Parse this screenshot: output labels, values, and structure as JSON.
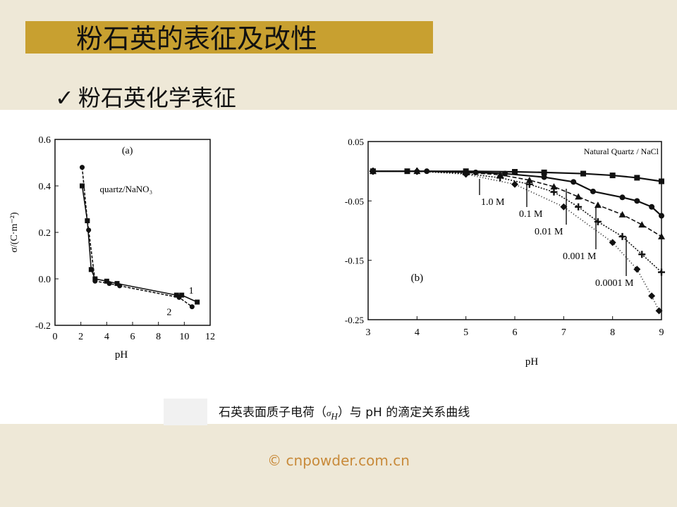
{
  "slide": {
    "title": "粉石英的表征及改性",
    "subtitle_check": "✓",
    "subtitle": "粉石英化学表征",
    "caption_prefix": "石英表面质子电荷（",
    "caption_sigma": "σ",
    "caption_sub": "H",
    "caption_suffix": "）与 pH 的滴定关系曲线",
    "footer": "© cnpowder.com.cn",
    "colors": {
      "background": "#eee8d7",
      "title_bar": "#c8a030",
      "footer": "#c88a3a"
    }
  },
  "chart_data": [
    {
      "type": "line",
      "panel_label": "(a)",
      "annotation": "quartz/NaNO₃",
      "xlabel": "pH",
      "ylabel": "σ/(C·m⁻²)",
      "xlim": [
        0,
        12
      ],
      "ylim": [
        -0.2,
        0.6
      ],
      "xticks": [
        "0",
        "2",
        "4",
        "6",
        "8",
        "10",
        "12"
      ],
      "yticks": [
        "-0.2",
        "0.0",
        "0.2",
        "0.4",
        "0.6"
      ],
      "grid": false,
      "series": [
        {
          "name": "1",
          "marker": "square",
          "x": [
            2.1,
            2.5,
            2.8,
            3.1,
            4.0,
            4.8,
            9.4,
            9.8,
            11.0
          ],
          "y": [
            0.4,
            0.25,
            0.04,
            0.0,
            -0.01,
            -0.02,
            -0.07,
            -0.07,
            -0.1
          ]
        },
        {
          "name": "2",
          "marker": "circle",
          "x": [
            2.1,
            2.5,
            2.6,
            3.1,
            4.2,
            5.0,
            9.6,
            10.6
          ],
          "y": [
            0.48,
            0.25,
            0.21,
            -0.01,
            -0.02,
            -0.03,
            -0.08,
            -0.12
          ]
        }
      ]
    },
    {
      "type": "line",
      "panel_label": "(b)",
      "legend_title": "Natural Quartz / NaCl",
      "xlabel": "pH",
      "xlim": [
        3,
        9
      ],
      "ylim": [
        -0.25,
        0.05
      ],
      "xticks": [
        "3",
        "4",
        "5",
        "6",
        "7",
        "8",
        "9"
      ],
      "yticks": [
        "0.05",
        "-0.05",
        "-0.15",
        "-0.25"
      ],
      "grid": false,
      "series": [
        {
          "name": "1.0 M",
          "marker": "square",
          "x": [
            3.1,
            3.8,
            5.0,
            6.0,
            6.6,
            7.4,
            8.0,
            8.5,
            9.0
          ],
          "y": [
            0.0,
            0.0,
            0.0,
            -0.001,
            -0.002,
            -0.004,
            -0.007,
            -0.011,
            -0.017
          ]
        },
        {
          "name": "0.1 M",
          "marker": "circle",
          "x": [
            3.1,
            4.2,
            5.2,
            5.8,
            6.6,
            7.2,
            7.6,
            8.2,
            8.5,
            8.8,
            9.0
          ],
          "y": [
            0.0,
            0.0,
            -0.002,
            -0.004,
            -0.01,
            -0.018,
            -0.034,
            -0.044,
            -0.05,
            -0.06,
            -0.075
          ]
        },
        {
          "name": "0.01 M",
          "marker": "triangle",
          "x": [
            3.1,
            4.0,
            5.0,
            5.7,
            6.3,
            6.8,
            7.3,
            7.7,
            8.2,
            8.6,
            9.0
          ],
          "y": [
            0.0,
            0.0,
            -0.002,
            -0.006,
            -0.015,
            -0.026,
            -0.043,
            -0.057,
            -0.073,
            -0.09,
            -0.11
          ]
        },
        {
          "name": "0.001 M",
          "marker": "cross",
          "x": [
            3.1,
            4.0,
            5.0,
            5.7,
            6.3,
            6.8,
            7.3,
            7.7,
            8.2,
            8.6,
            9.0
          ],
          "y": [
            0.0,
            0.0,
            -0.004,
            -0.011,
            -0.022,
            -0.035,
            -0.06,
            -0.085,
            -0.11,
            -0.14,
            -0.17
          ]
        },
        {
          "name": "0.0001 M",
          "marker": "diamond",
          "x": [
            3.1,
            4.0,
            5.0,
            6.0,
            7.0,
            8.0,
            8.5,
            8.8,
            8.95
          ],
          "y": [
            0.0,
            0.0,
            -0.005,
            -0.022,
            -0.06,
            -0.12,
            -0.165,
            -0.21,
            -0.235
          ]
        }
      ]
    }
  ]
}
